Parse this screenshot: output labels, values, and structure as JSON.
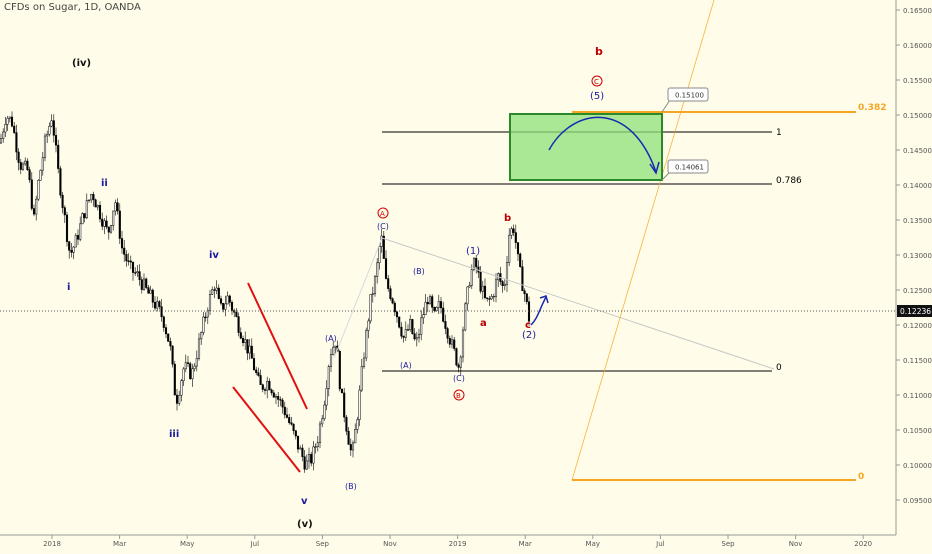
{
  "header": {
    "title": "CFDs on Sugar, 1D, OANDA"
  },
  "colors": {
    "background": "#fffdea",
    "candle_body": "#000000",
    "wave_blue": "#1a1a9c",
    "wave_red": "#b80000",
    "fib_orange": "#f5a623",
    "box_fill": "#8ee07a",
    "box_border": "#2a8a2a",
    "channel_red": "#e01010",
    "arrow_blue": "#1a2ab0"
  },
  "chart_data": {
    "type": "candlestick",
    "title": "CFDs on Sugar, 1D, OANDA",
    "x_ticks": [
      "2018",
      "Mar",
      "May",
      "Jul",
      "Sep",
      "Nov",
      "2019",
      "Mar",
      "May",
      "Jul",
      "Sep",
      "Nov",
      "2020"
    ],
    "y_ticks": [
      "0.16500",
      "0.16000",
      "0.15500",
      "0.15000",
      "0.14500",
      "0.14000",
      "0.13500",
      "0.13000",
      "0.12500",
      "0.12000",
      "0.11500",
      "0.11000",
      "0.10500",
      "0.10000",
      "0.09500"
    ],
    "ylim": [
      0.092,
      0.166
    ],
    "last_price": "0.12236",
    "price_path": [
      [
        0,
        0.146
      ],
      [
        6,
        0.15
      ],
      [
        12,
        0.149
      ],
      [
        20,
        0.143
      ],
      [
        28,
        0.142
      ],
      [
        34,
        0.135
      ],
      [
        38,
        0.14
      ],
      [
        45,
        0.146
      ],
      [
        52,
        0.15
      ],
      [
        58,
        0.142
      ],
      [
        64,
        0.136
      ],
      [
        70,
        0.13
      ],
      [
        76,
        0.132
      ],
      [
        84,
        0.136
      ],
      [
        92,
        0.139
      ],
      [
        100,
        0.136
      ],
      [
        108,
        0.133
      ],
      [
        115,
        0.138
      ],
      [
        122,
        0.131
      ],
      [
        130,
        0.128
      ],
      [
        138,
        0.127
      ],
      [
        146,
        0.125
      ],
      [
        155,
        0.123
      ],
      [
        163,
        0.121
      ],
      [
        170,
        0.117
      ],
      [
        176,
        0.109
      ],
      [
        184,
        0.114
      ],
      [
        192,
        0.113
      ],
      [
        200,
        0.118
      ],
      [
        208,
        0.123
      ],
      [
        215,
        0.126
      ],
      [
        220,
        0.122
      ],
      [
        228,
        0.124
      ],
      [
        236,
        0.121
      ],
      [
        244,
        0.118
      ],
      [
        252,
        0.115
      ],
      [
        260,
        0.111
      ],
      [
        268,
        0.112
      ],
      [
        276,
        0.11
      ],
      [
        284,
        0.108
      ],
      [
        292,
        0.105
      ],
      [
        300,
        0.102
      ],
      [
        306,
        0.1
      ],
      [
        312,
        0.101
      ],
      [
        318,
        0.104
      ],
      [
        324,
        0.109
      ],
      [
        330,
        0.116
      ],
      [
        336,
        0.118
      ],
      [
        341,
        0.11
      ],
      [
        346,
        0.106
      ],
      [
        352,
        0.101
      ],
      [
        358,
        0.108
      ],
      [
        364,
        0.116
      ],
      [
        370,
        0.123
      ],
      [
        376,
        0.127
      ],
      [
        381,
        0.133
      ],
      [
        386,
        0.126
      ],
      [
        392,
        0.124
      ],
      [
        398,
        0.121
      ],
      [
        404,
        0.118
      ],
      [
        410,
        0.12
      ],
      [
        416,
        0.117
      ],
      [
        422,
        0.121
      ],
      [
        428,
        0.124
      ],
      [
        434,
        0.121
      ],
      [
        440,
        0.123
      ],
      [
        446,
        0.12
      ],
      [
        452,
        0.117
      ],
      [
        459,
        0.114
      ],
      [
        464,
        0.121
      ],
      [
        470,
        0.127
      ],
      [
        475,
        0.129
      ],
      [
        480,
        0.126
      ],
      [
        486,
        0.123
      ],
      [
        492,
        0.124
      ],
      [
        498,
        0.127
      ],
      [
        504,
        0.125
      ],
      [
        509,
        0.133
      ],
      [
        514,
        0.134
      ],
      [
        519,
        0.128
      ],
      [
        524,
        0.125
      ],
      [
        529,
        0.121
      ]
    ],
    "levels": [
      {
        "label": "1",
        "value": 0.14755
      },
      {
        "label": "0.786",
        "value": 0.14061
      },
      {
        "label": "0",
        "value": 0.114
      },
      {
        "label": "0.382",
        "value": 0.1505
      },
      {
        "label": "0",
        "value": 0.0985
      }
    ],
    "callouts": [
      "0.15100",
      "0.14061"
    ],
    "wave_labels": {
      "blue": [
        "ii",
        "i",
        "iv",
        "iii",
        "v",
        "(A)",
        "(B)",
        "(C)",
        "(B)",
        "(A)",
        "(C)",
        "(1)",
        "(2)",
        "(5)"
      ],
      "black": [
        "(iv)",
        "(v)"
      ],
      "red": [
        "b",
        "a",
        "c",
        "b"
      ],
      "circled": [
        "A",
        "B",
        "C"
      ]
    }
  }
}
